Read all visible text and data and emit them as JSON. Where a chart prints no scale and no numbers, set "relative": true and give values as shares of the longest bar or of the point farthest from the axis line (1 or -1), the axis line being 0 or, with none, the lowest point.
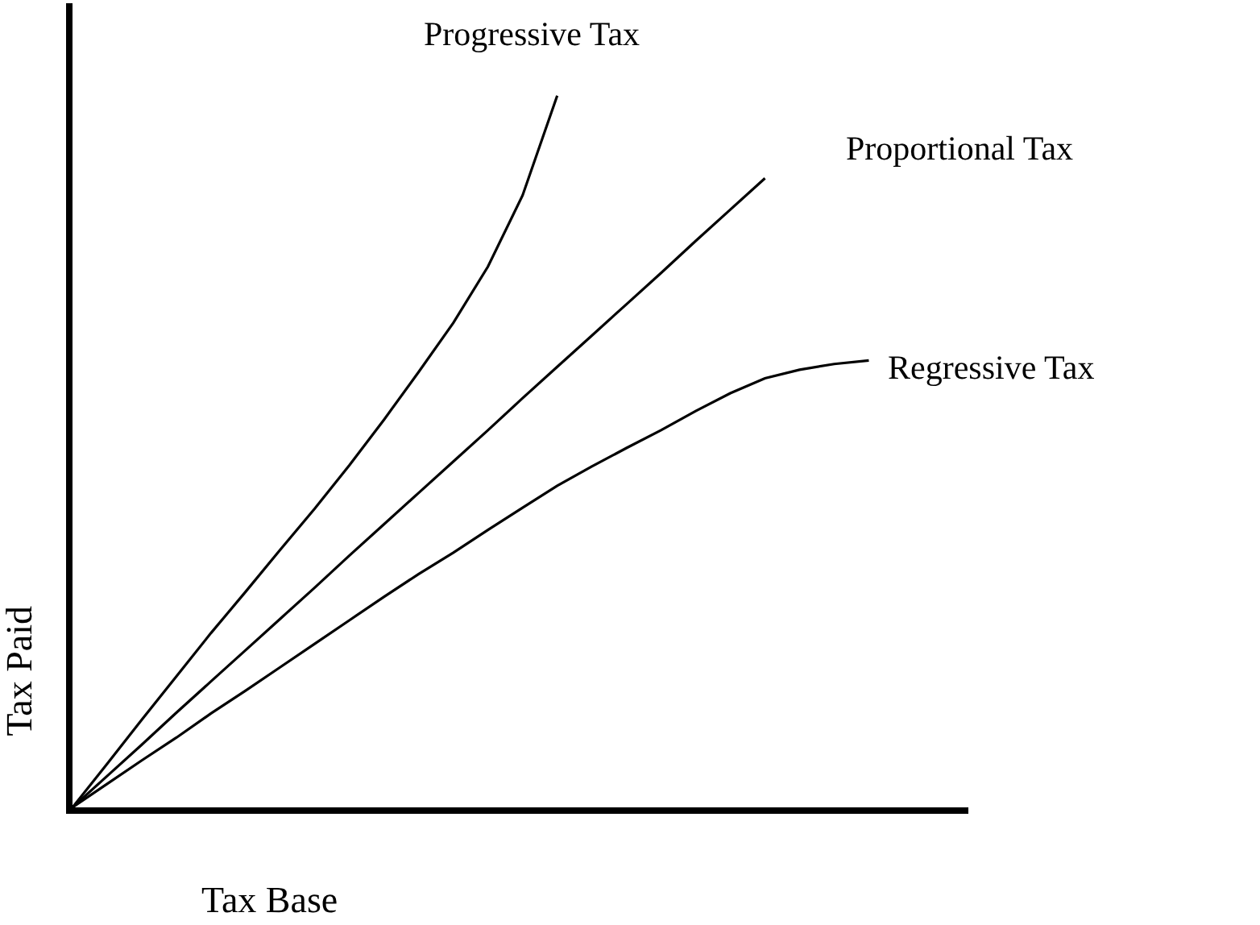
{
  "chart_data": {
    "type": "line",
    "relative": true,
    "xlabel": "Tax Base",
    "ylabel": "Tax Paid",
    "legend": false,
    "categories": [
      null,
      null,
      null,
      null,
      null,
      null,
      null,
      null,
      null,
      null,
      null,
      null,
      null,
      null,
      null,
      null,
      null,
      null,
      null,
      null,
      null,
      null,
      null,
      null
    ],
    "series": [
      {
        "name": "Progressive Tax",
        "color": "#000000",
        "values": [
          0,
          0.061,
          0.123,
          0.184,
          0.245,
          0.303,
          0.362,
          0.42,
          0.481,
          0.545,
          0.612,
          0.681,
          0.76,
          0.86,
          1,
          null,
          null,
          null,
          null,
          null,
          null,
          null,
          null,
          null
        ]
      },
      {
        "name": "Proportional Tax",
        "color": "#000000",
        "values": [
          0,
          0.044,
          0.088,
          0.133,
          0.177,
          0.221,
          0.265,
          0.309,
          0.354,
          0.398,
          0.442,
          0.486,
          0.53,
          0.575,
          0.619,
          0.663,
          0.707,
          0.751,
          0.796,
          0.84,
          0.884,
          null,
          null,
          null
        ]
      },
      {
        "name": "Regressive Tax",
        "color": "#000000",
        "values": [
          0,
          0.033,
          0.066,
          0.098,
          0.132,
          0.164,
          0.197,
          0.23,
          0.263,
          0.296,
          0.328,
          0.358,
          0.39,
          0.421,
          0.452,
          0.479,
          0.505,
          0.53,
          0.557,
          0.582,
          0.603,
          0.615,
          0.623,
          0.628
        ]
      }
    ]
  }
}
